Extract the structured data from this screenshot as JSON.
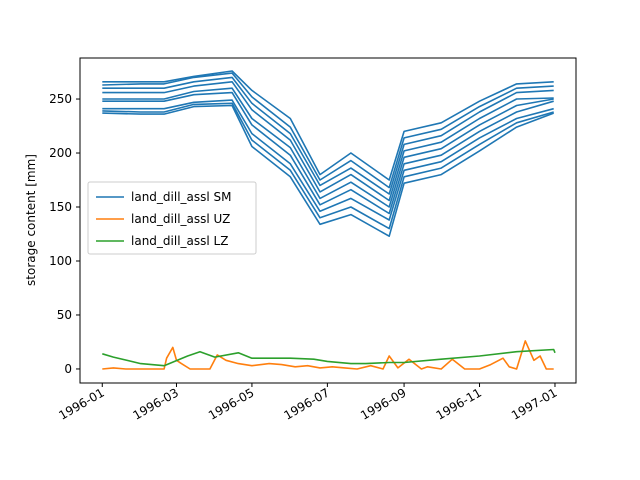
{
  "chart_data": {
    "type": "line",
    "title": "",
    "xlabel": "",
    "ylabel": "storage content [mm]",
    "x_ticks": [
      "1996-01",
      "1996-03",
      "1996-05",
      "1996-07",
      "1996-09",
      "1996-11",
      "1997-01"
    ],
    "x_tick_dates": [
      "1996-01-01",
      "1996-03-01",
      "1996-05-01",
      "1996-07-01",
      "1996-09-01",
      "1996-11-01",
      "1997-01-01"
    ],
    "y_ticks": [
      0,
      50,
      100,
      150,
      200,
      250
    ],
    "xlim": [
      "1995-12-14",
      "1997-01-18"
    ],
    "ylim": [
      -13,
      288
    ],
    "grid": false,
    "legend_position": "center-left",
    "colors": {
      "SM": "#1f77b4",
      "UZ": "#ff7f0e",
      "LZ": "#2ca02c"
    },
    "series": [
      {
        "name": "land_dill_assl SM",
        "color": "#1f77b4",
        "note_lines": "several parallel soil moisture curves for different land classes",
        "members": [
          {
            "x": [
              "1996-01-01",
              "1996-02-01",
              "1996-02-20",
              "1996-03-15",
              "1996-04-15",
              "1996-05-01",
              "1996-06-01",
              "1996-06-25",
              "1996-07-20",
              "1996-08-20",
              "1996-09-01",
              "1996-10-01",
              "1996-11-01",
              "1996-12-01",
              "1996-12-31"
            ],
            "y": [
              266,
              266,
              266,
              271,
              276,
              258,
              232,
              180,
              200,
              175,
              220,
              228,
              248,
              264,
              266
            ]
          },
          {
            "x": [
              "1996-01-01",
              "1996-02-01",
              "1996-02-20",
              "1996-03-15",
              "1996-04-15",
              "1996-05-01",
              "1996-06-01",
              "1996-06-25",
              "1996-07-20",
              "1996-08-20",
              "1996-09-01",
              "1996-10-01",
              "1996-11-01",
              "1996-12-01",
              "1996-12-31"
            ],
            "y": [
              263,
              264,
              264,
              270,
              274,
              252,
              224,
              175,
              193,
              168,
              214,
              222,
              243,
              260,
              262
            ]
          },
          {
            "x": [
              "1996-01-01",
              "1996-02-01",
              "1996-02-20",
              "1996-03-15",
              "1996-04-15",
              "1996-05-01",
              "1996-06-01",
              "1996-06-25",
              "1996-07-20",
              "1996-08-20",
              "1996-09-01",
              "1996-10-01",
              "1996-11-01",
              "1996-12-01",
              "1996-12-31"
            ],
            "y": [
              260,
              260,
              260,
              266,
              270,
              246,
              218,
              170,
              186,
              162,
              208,
              216,
              238,
              256,
              258
            ]
          },
          {
            "x": [
              "1996-01-01",
              "1996-02-01",
              "1996-02-20",
              "1996-03-15",
              "1996-04-15",
              "1996-05-01",
              "1996-06-01",
              "1996-06-25",
              "1996-07-20",
              "1996-08-20",
              "1996-09-01",
              "1996-10-01",
              "1996-11-01",
              "1996-12-01",
              "1996-12-31"
            ],
            "y": [
              256,
              256,
              256,
              262,
              266,
              240,
              212,
              164,
              180,
              156,
              202,
              210,
              232,
              250,
              251
            ]
          },
          {
            "x": [
              "1996-01-01",
              "1996-02-01",
              "1996-02-20",
              "1996-03-15",
              "1996-04-15",
              "1996-05-01",
              "1996-06-01",
              "1996-06-25",
              "1996-07-20",
              "1996-08-20",
              "1996-09-01",
              "1996-10-01",
              "1996-11-01",
              "1996-12-01",
              "1996-12-31"
            ],
            "y": [
              250,
              250,
              250,
              257,
              260,
              232,
              205,
              158,
              173,
              150,
              196,
              204,
              226,
              244,
              250
            ]
          },
          {
            "x": [
              "1996-01-01",
              "1996-02-01",
              "1996-02-20",
              "1996-03-15",
              "1996-04-15",
              "1996-05-01",
              "1996-06-01",
              "1996-06-25",
              "1996-07-20",
              "1996-08-20",
              "1996-09-01",
              "1996-10-01",
              "1996-11-01",
              "1996-12-01",
              "1996-12-31"
            ],
            "y": [
              248,
              248,
              248,
              254,
              256,
              226,
              198,
              152,
              166,
              144,
              190,
              198,
              220,
              238,
              248
            ]
          },
          {
            "x": [
              "1996-01-01",
              "1996-02-01",
              "1996-02-20",
              "1996-03-15",
              "1996-04-15",
              "1996-05-01",
              "1996-06-01",
              "1996-06-25",
              "1996-07-20",
              "1996-08-20",
              "1996-09-01",
              "1996-10-01",
              "1996-11-01",
              "1996-12-01",
              "1996-12-31"
            ],
            "y": [
              241,
              241,
              241,
              247,
              249,
              218,
              190,
              146,
              158,
              138,
              184,
              192,
              214,
              232,
              241
            ]
          },
          {
            "x": [
              "1996-01-01",
              "1996-02-01",
              "1996-02-20",
              "1996-03-15",
              "1996-04-15",
              "1996-05-01",
              "1996-06-01",
              "1996-06-25",
              "1996-07-20",
              "1996-08-20",
              "1996-09-01",
              "1996-10-01",
              "1996-11-01",
              "1996-12-01",
              "1996-12-31"
            ],
            "y": [
              239,
              238,
              238,
              245,
              246,
              212,
              184,
              140,
              150,
              130,
              178,
              186,
              208,
              228,
              238
            ]
          },
          {
            "x": [
              "1996-01-01",
              "1996-02-01",
              "1996-02-20",
              "1996-03-15",
              "1996-04-15",
              "1996-05-01",
              "1996-06-01",
              "1996-06-25",
              "1996-07-20",
              "1996-08-20",
              "1996-09-01",
              "1996-10-01",
              "1996-11-01",
              "1996-12-01",
              "1996-12-31"
            ],
            "y": [
              237,
              236,
              236,
              243,
              244,
              206,
              178,
              134,
              143,
              123,
              172,
              180,
              202,
              224,
              237
            ]
          }
        ]
      },
      {
        "name": "land_dill_assl UZ",
        "color": "#ff7f0e",
        "x": [
          "1996-01-01",
          "1996-01-10",
          "1996-01-20",
          "1996-02-01",
          "1996-02-20",
          "1996-02-22",
          "1996-02-27",
          "1996-03-01",
          "1996-03-05",
          "1996-03-12",
          "1996-03-20",
          "1996-03-28",
          "1996-04-03",
          "1996-04-10",
          "1996-04-20",
          "1996-05-01",
          "1996-05-15",
          "1996-05-25",
          "1996-06-05",
          "1996-06-15",
          "1996-06-25",
          "1996-07-05",
          "1996-07-15",
          "1996-07-25",
          "1996-08-05",
          "1996-08-15",
          "1996-08-20",
          "1996-08-27",
          "1996-09-05",
          "1996-09-15",
          "1996-09-20",
          "1996-10-01",
          "1996-10-10",
          "1996-10-20",
          "1996-11-01",
          "1996-11-10",
          "1996-11-20",
          "1996-11-25",
          "1996-12-01",
          "1996-12-08",
          "1996-12-15",
          "1996-12-20",
          "1996-12-25",
          "1996-12-31"
        ],
        "y": [
          0,
          1,
          0,
          0,
          0,
          10,
          20,
          8,
          5,
          0,
          0,
          0,
          13,
          8,
          5,
          3,
          5,
          4,
          2,
          3,
          1,
          2,
          1,
          0,
          3,
          0,
          12,
          1,
          9,
          0,
          2,
          0,
          9,
          0,
          0,
          4,
          10,
          2,
          0,
          26,
          8,
          12,
          0,
          0
        ]
      },
      {
        "name": "land_dill_assl LZ",
        "color": "#2ca02c",
        "x": [
          "1996-01-01",
          "1996-01-10",
          "1996-02-01",
          "1996-02-20",
          "1996-03-10",
          "1996-03-20",
          "1996-04-01",
          "1996-04-20",
          "1996-05-01",
          "1996-06-01",
          "1996-06-20",
          "1996-07-01",
          "1996-07-20",
          "1996-08-01",
          "1996-08-20",
          "1996-09-01",
          "1996-10-01",
          "1996-11-01",
          "1996-12-01",
          "1996-12-31",
          "1997-01-01"
        ],
        "y": [
          14,
          11,
          5,
          3,
          12,
          16,
          11,
          15,
          10,
          10,
          9,
          7,
          5,
          5,
          6,
          6,
          9,
          12,
          16,
          18,
          15
        ]
      }
    ]
  }
}
